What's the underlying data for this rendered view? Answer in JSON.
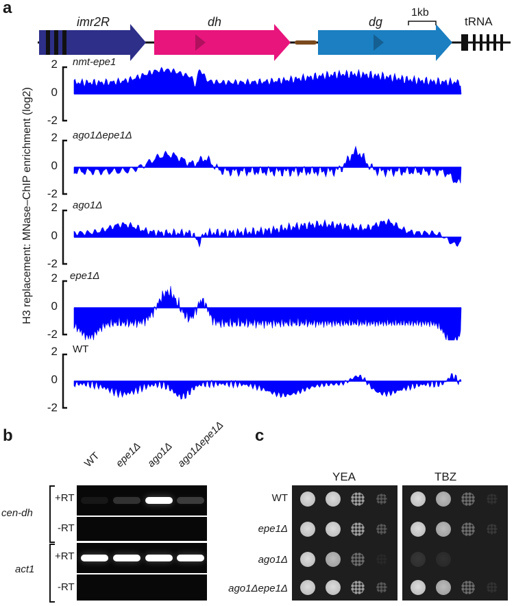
{
  "panel_a": {
    "letter": "a",
    "map": {
      "imr2R": "imr2R",
      "dh": "dh",
      "dg": "dg",
      "scale": "1kb",
      "trna": "tRNA",
      "colors": {
        "imr2R": "#2e2f88",
        "dh": "#e8157d",
        "dg": "#1b7fc1",
        "linker": "#7a4a1e"
      }
    },
    "ylabel": "H3 replacement: MNase–ChIP enrichment (log2)",
    "ticks": [
      "2",
      "0",
      "-2"
    ],
    "track_color": "#0000ff",
    "tracks": [
      {
        "name": "nmt-epe1"
      },
      {
        "name": "ago1Δepe1Δ"
      },
      {
        "name": "ago1Δ"
      },
      {
        "name": "epe1Δ"
      },
      {
        "name": "WT"
      }
    ]
  },
  "panel_b": {
    "letter": "b",
    "columns": [
      "WT",
      "epe1Δ",
      "ago1Δ",
      "ago1Δepe1Δ"
    ],
    "genes": [
      {
        "name": "cen-dh",
        "rows": [
          {
            "label": "+RT",
            "bands": [
              0.05,
              0.35,
              1.0,
              0.4
            ]
          },
          {
            "label": "-RT",
            "bands": [
              0,
              0,
              0,
              0
            ]
          }
        ]
      },
      {
        "name": "act1",
        "rows": [
          {
            "label": "+RT",
            "bands": [
              1.0,
              1.0,
              1.0,
              1.0
            ]
          },
          {
            "label": "-RT",
            "bands": [
              0,
              0,
              0,
              0
            ]
          }
        ]
      }
    ]
  },
  "panel_c": {
    "letter": "c",
    "media": [
      "YEA",
      "TBZ"
    ],
    "strains": [
      "WT",
      "epe1Δ",
      "ago1Δ",
      "ago1Δepe1Δ"
    ],
    "growth_yea": [
      [
        1,
        1,
        0.8,
        0.5
      ],
      [
        1,
        1,
        0.8,
        0.5
      ],
      [
        1,
        0.9,
        0.6,
        0.15
      ],
      [
        1,
        1,
        0.8,
        0.5
      ]
    ],
    "growth_tbz": [
      [
        1,
        0.9,
        0.6,
        0.25
      ],
      [
        1,
        0.9,
        0.6,
        0.3
      ],
      [
        0.3,
        0.15,
        0,
        0
      ],
      [
        1,
        0.9,
        0.6,
        0.25
      ]
    ]
  }
}
